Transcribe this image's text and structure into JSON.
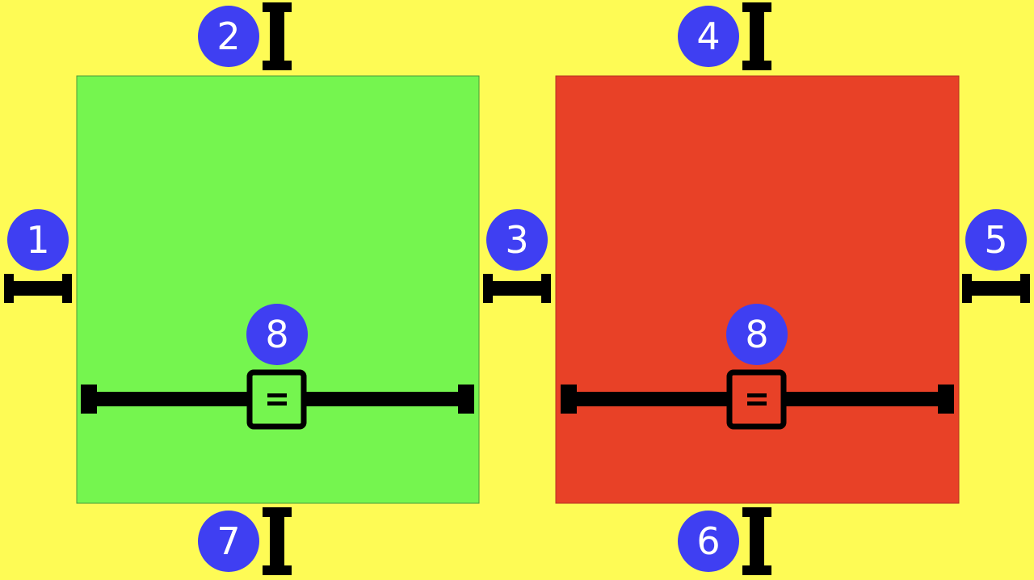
{
  "colors": {
    "background": "#fefb55",
    "left_panel": "#75f54f",
    "right_panel": "#e84127",
    "badge": "#3f3ff2",
    "badge_text": "#ffffff",
    "handle": "#000000"
  },
  "panels": [
    {
      "name": "left-panel",
      "color_key": "left_panel"
    },
    {
      "name": "right-panel",
      "color_key": "right_panel"
    }
  ],
  "markers": {
    "m1": "1",
    "m2": "2",
    "m3": "3",
    "m4": "4",
    "m5": "5",
    "m6": "6",
    "m7": "7",
    "m8_left": "8",
    "m8_right": "8"
  },
  "handles": {
    "vertical_icon": "vertical-resize-handle-icon",
    "horizontal_icon": "horizontal-resize-handle-icon",
    "slider_icon": "split-slider-icon",
    "slider_grip_icon": "equals-grip-icon"
  }
}
